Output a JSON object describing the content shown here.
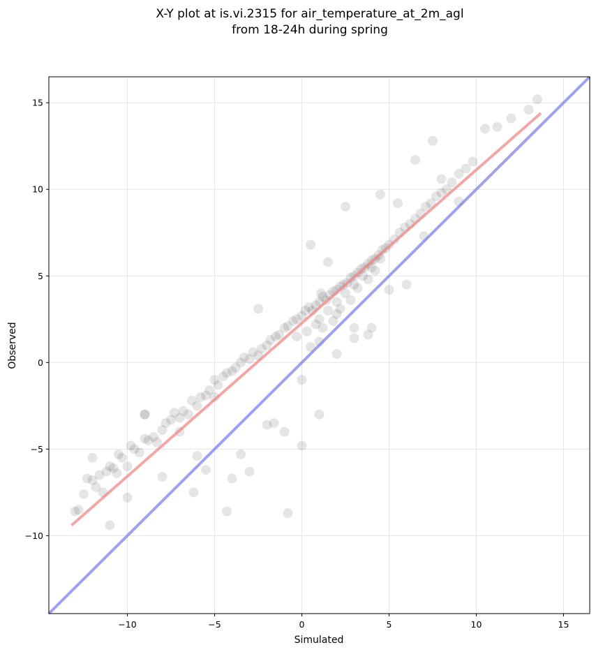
{
  "chart_data": {
    "type": "scatter",
    "title_lines": [
      "X-Y plot at is.vi.2315 for air_temperature_at_2m_agl",
      "from 18-24h during spring"
    ],
    "xlabel": "Simulated",
    "ylabel": "Observed",
    "xlim": [
      -14.5,
      16.5
    ],
    "ylim": [
      -14.5,
      16.5
    ],
    "xticks": [
      -10,
      -5,
      0,
      5,
      10,
      15
    ],
    "yticks": [
      -10,
      -5,
      0,
      5,
      10,
      15
    ],
    "xtick_labels": [
      "−10",
      "−5",
      "0",
      "5",
      "10",
      "15"
    ],
    "ytick_labels": [
      "−10",
      "−5",
      "0",
      "5",
      "10",
      "15"
    ],
    "grid": true,
    "points_color": "#000000",
    "series": [
      {
        "kind": "points",
        "x": [
          -13.0,
          -12.8,
          -12.5,
          -12.3,
          -12.0,
          -11.8,
          -11.6,
          -11.4,
          -11.2,
          -11.0,
          -10.8,
          -10.6,
          -10.5,
          -10.3,
          -10.0,
          -9.8,
          -9.6,
          -9.3,
          -9.0,
          -8.8,
          -8.5,
          -8.3,
          -8.0,
          -7.8,
          -7.5,
          -7.3,
          -7.0,
          -6.8,
          -6.5,
          -6.3,
          -6.0,
          -5.8,
          -5.5,
          -5.3,
          -5.0,
          -4.8,
          -4.5,
          -4.3,
          -4.0,
          -3.8,
          -3.5,
          -3.3,
          -3.0,
          -2.8,
          -2.5,
          -2.3,
          -2.0,
          -1.8,
          -1.5,
          -1.3,
          -1.0,
          -0.8,
          -0.5,
          -0.3,
          0.0,
          0.2,
          0.4,
          0.6,
          0.8,
          1.0,
          1.2,
          1.4,
          1.6,
          1.8,
          2.0,
          2.2,
          2.4,
          2.6,
          2.8,
          3.0,
          3.2,
          3.4,
          3.6,
          3.8,
          4.0,
          4.2,
          4.4,
          4.6,
          4.8,
          5.0,
          5.3,
          5.6,
          5.9,
          6.2,
          6.5,
          6.8,
          7.1,
          7.4,
          7.7,
          8.0,
          8.3,
          8.6,
          9.0,
          9.4,
          9.8,
          10.5,
          11.2,
          12.0,
          13.0,
          13.5,
          -12.0,
          -11.0,
          -10.0,
          -9.0,
          -8.0,
          -7.0,
          -6.0,
          -5.0,
          -4.0,
          -3.0,
          -2.0,
          -1.0,
          0.0,
          1.0,
          2.0,
          3.0,
          4.0,
          5.0,
          6.0,
          7.0,
          8.0,
          9.0,
          -4.3,
          -6.2,
          -1.6,
          0.0,
          1.0,
          -0.8,
          -3.5,
          -5.5,
          -9.0,
          3.8,
          5.5,
          2.0,
          1.5,
          0.5,
          -2.5,
          6.5,
          7.5,
          2.5,
          3.0,
          4.5,
          1.0,
          1.5,
          2.0,
          2.5,
          3.0,
          3.5,
          4.0,
          4.5,
          1.2,
          1.8,
          2.2,
          2.8,
          3.2,
          3.8,
          4.2,
          0.8,
          0.3,
          -0.3,
          0.5,
          1.1
        ],
        "y": [
          -8.6,
          -8.5,
          -7.6,
          -6.7,
          -6.8,
          -7.2,
          -6.5,
          -7.5,
          -6.3,
          -6.0,
          -6.1,
          -6.4,
          -5.3,
          -5.5,
          -6.0,
          -4.8,
          -5.0,
          -5.2,
          -4.4,
          -4.5,
          -4.3,
          -4.6,
          -3.9,
          -3.5,
          -3.3,
          -2.9,
          -3.2,
          -2.8,
          -3.0,
          -2.2,
          -2.5,
          -2.0,
          -1.9,
          -1.6,
          -1.0,
          -1.3,
          -0.8,
          -0.6,
          -0.5,
          -0.3,
          0.0,
          0.3,
          0.2,
          0.6,
          0.4,
          0.8,
          1.0,
          1.3,
          1.5,
          1.6,
          2.0,
          2.1,
          2.4,
          2.5,
          2.7,
          3.0,
          3.2,
          3.0,
          3.3,
          3.5,
          3.8,
          3.6,
          3.9,
          4.1,
          4.2,
          4.4,
          4.5,
          4.6,
          4.9,
          5.0,
          5.2,
          5.4,
          5.5,
          5.7,
          5.9,
          6.0,
          6.2,
          6.5,
          6.6,
          6.8,
          7.1,
          7.5,
          7.8,
          8.0,
          8.3,
          8.6,
          9.0,
          9.2,
          9.6,
          9.8,
          10.0,
          10.4,
          10.9,
          11.2,
          11.6,
          13.5,
          13.6,
          14.1,
          14.6,
          15.2,
          -5.5,
          -9.4,
          -7.8,
          -3.0,
          -6.6,
          -4.0,
          -5.4,
          -2.0,
          -6.7,
          -6.3,
          -3.6,
          -4.0,
          -1.0,
          1.2,
          2.8,
          1.4,
          2.0,
          4.2,
          4.5,
          7.3,
          10.6,
          9.3,
          -8.6,
          -7.5,
          -3.5,
          -4.8,
          -3.0,
          -8.7,
          -5.3,
          -6.2,
          -3.0,
          1.6,
          9.2,
          0.5,
          5.8,
          6.8,
          3.1,
          11.7,
          12.8,
          9.0,
          2.0,
          9.7,
          2.5,
          3.0,
          3.5,
          4.0,
          4.5,
          5.0,
          5.5,
          6.0,
          2.0,
          2.4,
          3.1,
          3.6,
          4.3,
          4.8,
          5.3,
          2.2,
          1.8,
          1.5,
          0.9,
          4.0
        ]
      },
      {
        "kind": "regression",
        "x": [
          -13.2,
          13.7
        ],
        "y": [
          -9.4,
          14.4
        ],
        "color": "#f08080"
      },
      {
        "kind": "identity",
        "x": [
          -14.5,
          16.5
        ],
        "y": [
          -14.5,
          16.5
        ],
        "color": "#7777ee"
      }
    ]
  }
}
